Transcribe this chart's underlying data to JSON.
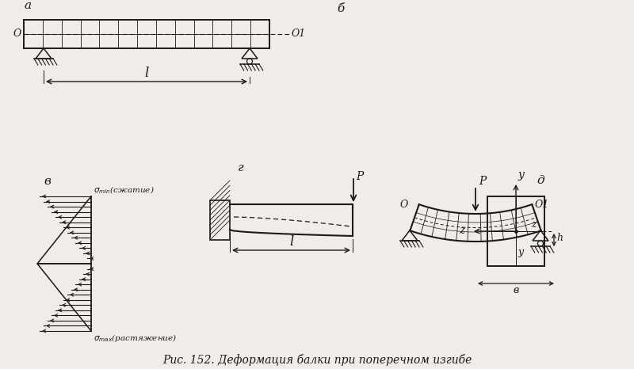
{
  "title": "Рис. 152. Деформация балки при поперечном изгибе",
  "bg_color": "#f0ede8",
  "line_color": "#1a1a1a",
  "label_a": "а",
  "label_b": "б",
  "label_v": "в",
  "label_g": "г",
  "label_d": "д",
  "label_O": "O",
  "label_O1": "O1",
  "label_l": "l",
  "label_P": "P",
  "label_y": "y",
  "label_z": "z",
  "label_b_dim": "в",
  "label_h": "h",
  "sigma_min_text": "σmin(сжатие)",
  "sigma_max_text": "σmax(растяжение)"
}
